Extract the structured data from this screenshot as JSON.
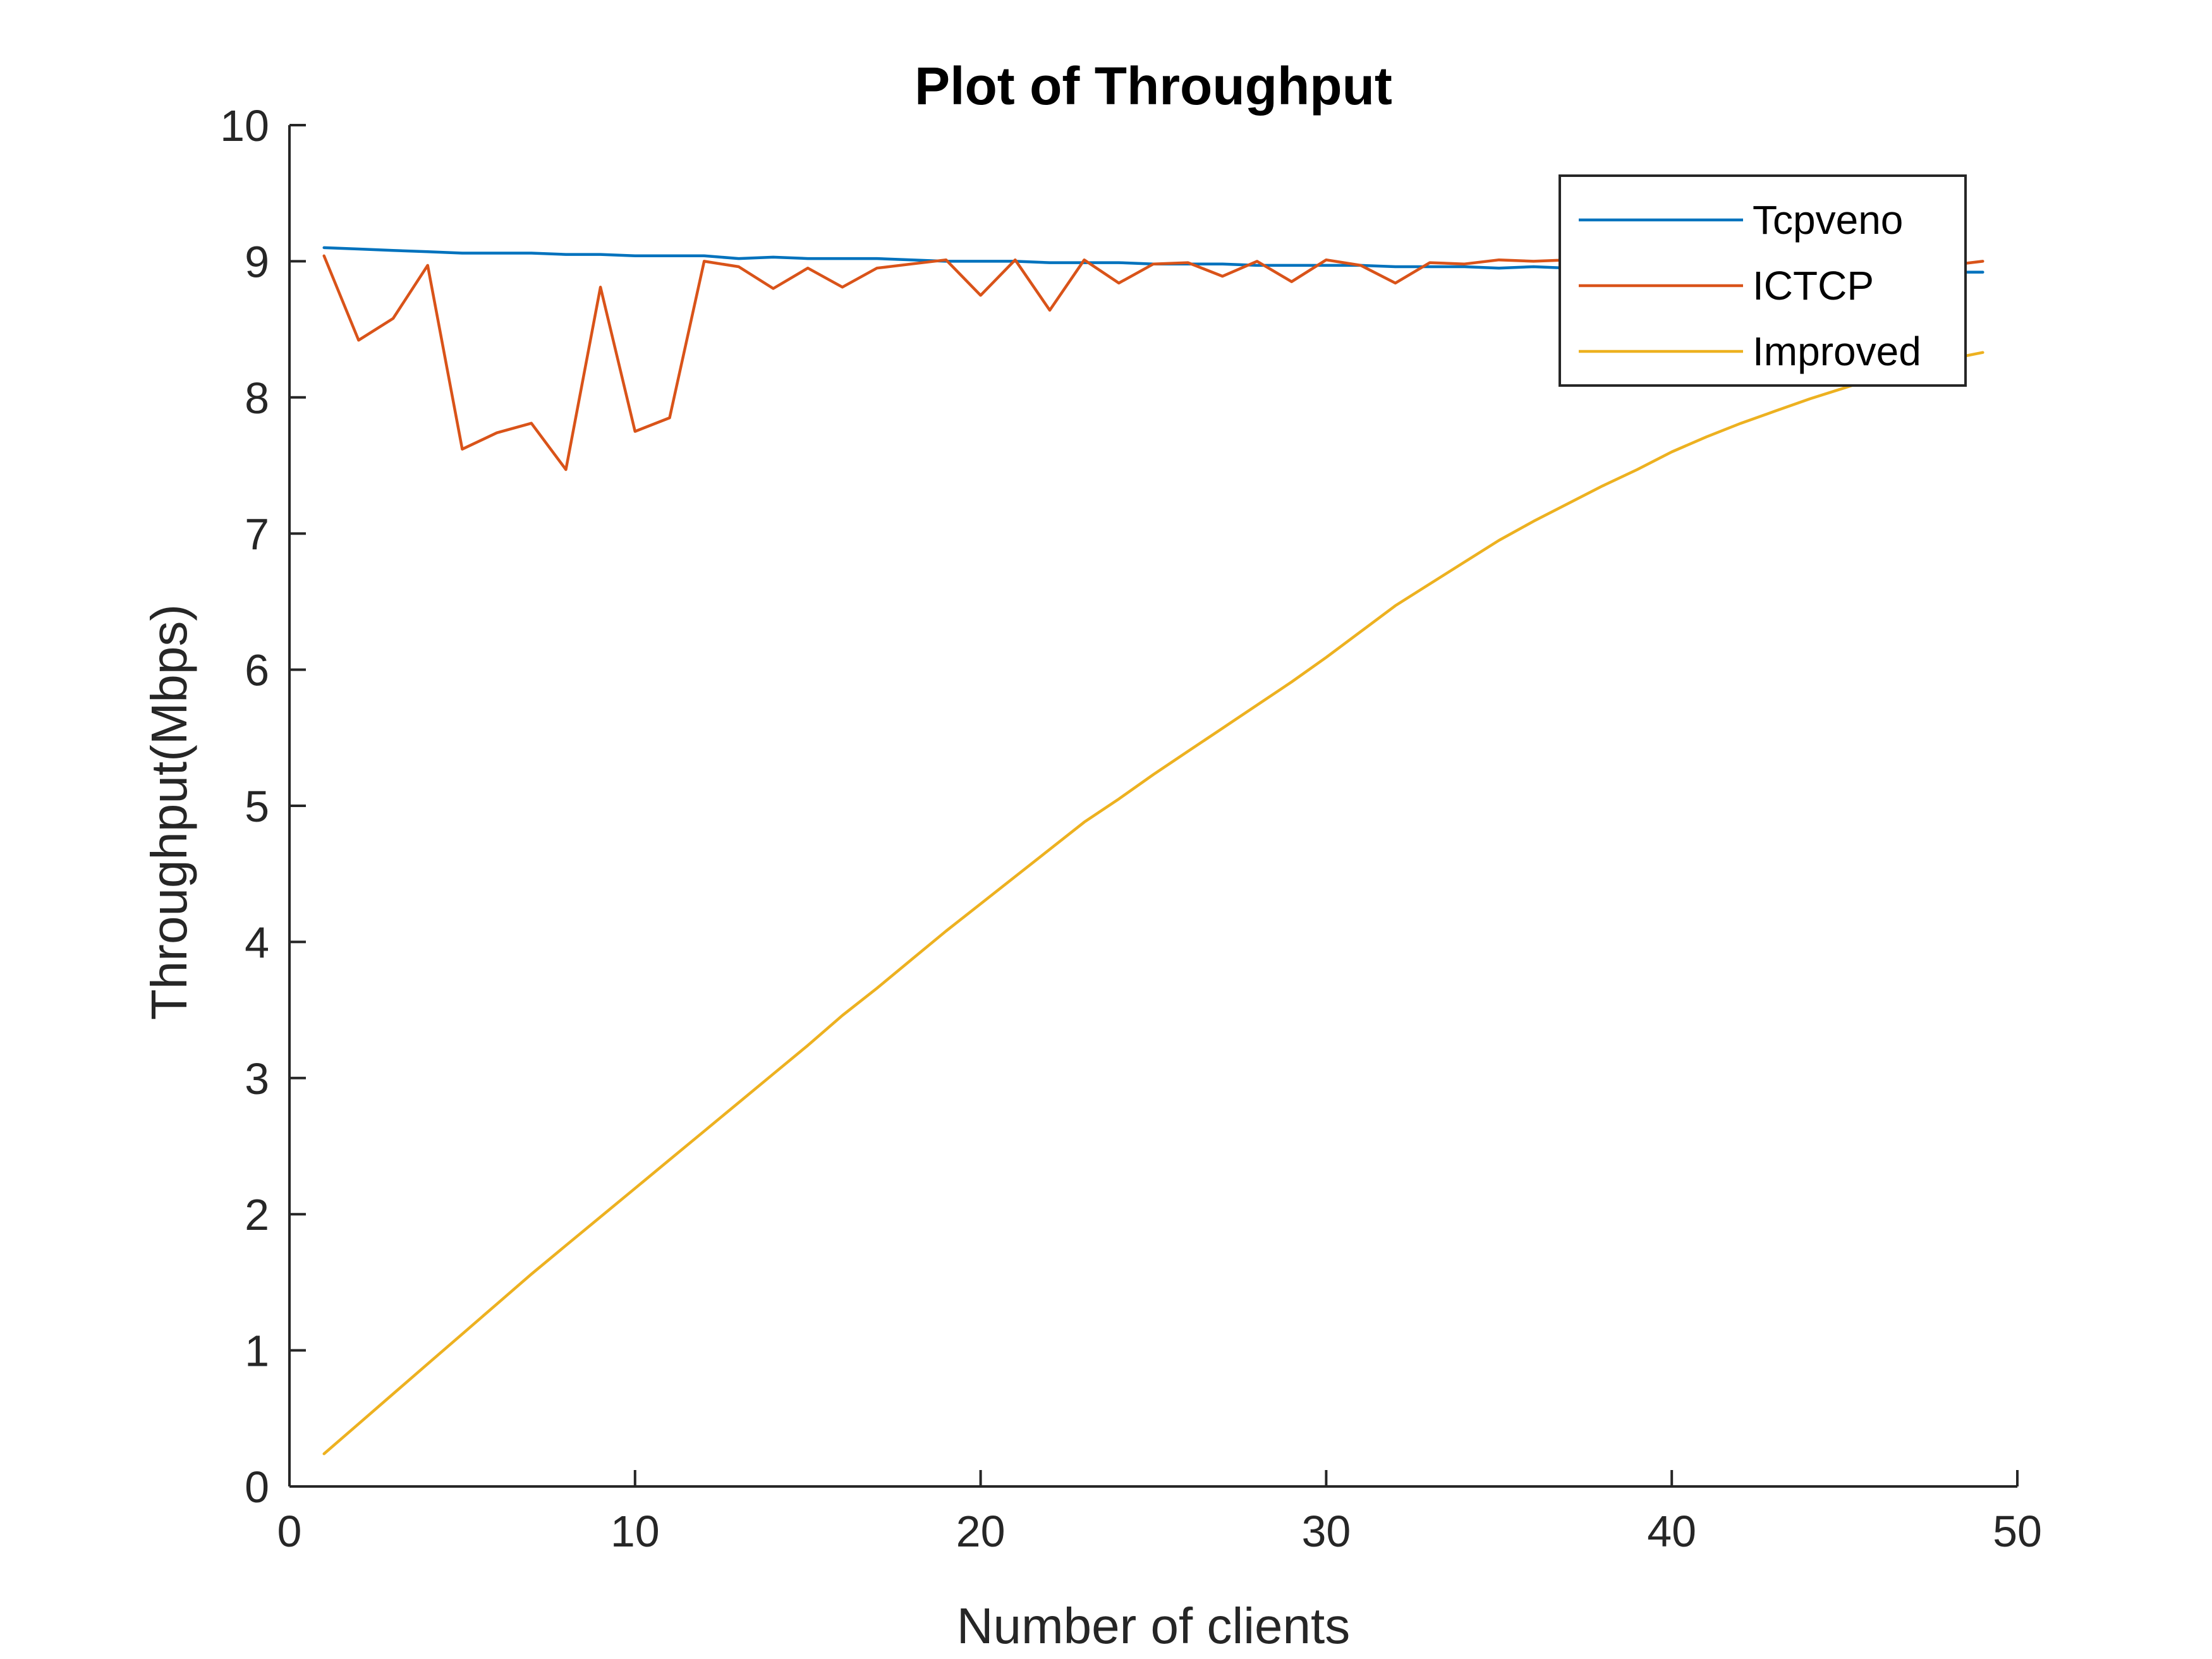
{
  "chart_data": {
    "type": "line",
    "title": "Plot of Throughput",
    "xlabel": "Number of clients",
    "ylabel": "Throughput(Mbps)",
    "xlim": [
      0,
      50
    ],
    "ylim": [
      0,
      10
    ],
    "xticks": [
      "0",
      "10",
      "20",
      "30",
      "40",
      "50"
    ],
    "yticks": [
      "0",
      "1",
      "2",
      "3",
      "4",
      "5",
      "6",
      "7",
      "8",
      "9",
      "10"
    ],
    "grid": false,
    "legend_position": "top-right",
    "x": [
      1,
      2,
      3,
      4,
      5,
      6,
      7,
      8,
      9,
      10,
      11,
      12,
      13,
      14,
      15,
      16,
      17,
      18,
      19,
      20,
      21,
      22,
      23,
      24,
      25,
      26,
      27,
      28,
      29,
      30,
      31,
      32,
      33,
      34,
      35,
      36,
      37,
      38,
      39,
      40,
      41,
      42,
      43,
      44,
      45,
      46,
      47,
      48,
      49
    ],
    "series": [
      {
        "name": "Tcpveno",
        "color": "#0072BD",
        "values": [
          9.1,
          9.09,
          9.08,
          9.07,
          9.06,
          9.06,
          9.06,
          9.05,
          9.05,
          9.04,
          9.04,
          9.04,
          9.02,
          9.03,
          9.02,
          9.02,
          9.02,
          9.01,
          9.0,
          9.0,
          9.0,
          8.99,
          8.99,
          8.99,
          8.98,
          8.98,
          8.98,
          8.97,
          8.97,
          8.97,
          8.97,
          8.96,
          8.96,
          8.96,
          8.95,
          8.96,
          8.95,
          8.95,
          8.95,
          8.94,
          8.94,
          8.94,
          8.94,
          8.93,
          8.93,
          8.93,
          8.93,
          8.92,
          8.92
        ]
      },
      {
        "name": "ICTCP",
        "color": "#D95319",
        "values": [
          9.04,
          8.42,
          8.58,
          8.97,
          7.62,
          7.74,
          7.81,
          7.47,
          8.81,
          7.75,
          7.85,
          9.0,
          8.96,
          8.8,
          8.95,
          8.81,
          8.95,
          8.98,
          9.01,
          8.75,
          9.01,
          8.64,
          9.01,
          8.84,
          8.98,
          8.99,
          8.89,
          9.0,
          8.85,
          9.01,
          8.97,
          8.84,
          8.99,
          8.98,
          9.01,
          9.0,
          9.01,
          8.98,
          8.99,
          9.01,
          8.97,
          9.0,
          8.98,
          9.01,
          8.99,
          8.98,
          9.0,
          8.97,
          9.0
        ]
      },
      {
        "name": "Improved",
        "color": "#EDB120",
        "values": [
          0.24,
          0.46,
          0.68,
          0.9,
          1.12,
          1.34,
          1.56,
          1.77,
          1.98,
          2.19,
          2.4,
          2.61,
          2.82,
          3.03,
          3.24,
          3.46,
          3.66,
          3.87,
          4.08,
          4.28,
          4.48,
          4.68,
          4.88,
          5.05,
          5.23,
          5.4,
          5.57,
          5.74,
          5.91,
          6.09,
          6.28,
          6.47,
          6.63,
          6.79,
          6.95,
          7.09,
          7.22,
          7.35,
          7.47,
          7.6,
          7.71,
          7.81,
          7.9,
          7.99,
          8.07,
          8.15,
          8.22,
          8.28,
          8.33
        ]
      }
    ]
  }
}
